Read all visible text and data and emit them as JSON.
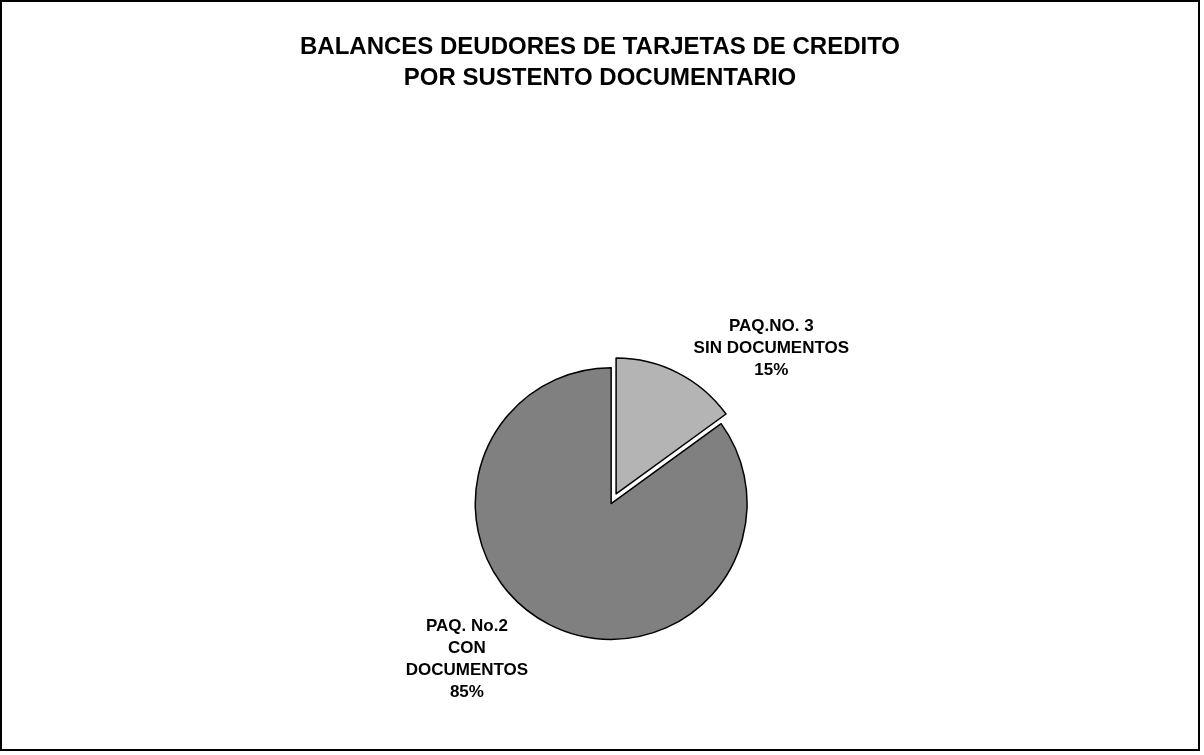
{
  "chart_data": {
    "type": "pie",
    "title": "BALANCES DEUDORES DE TARJETAS DE CREDITO\nPOR SUSTENTO DOCUMENTARIO",
    "categories": [
      "PAQ.NO. 3\nSIN DOCUMENTOS",
      "PAQ. No.2\nCON\nDOCUMENTOS"
    ],
    "values": [
      15,
      85
    ],
    "value_labels": [
      "15%",
      "85%"
    ],
    "colors": [
      "#b4b4b4",
      "#808080"
    ],
    "legend": false
  }
}
